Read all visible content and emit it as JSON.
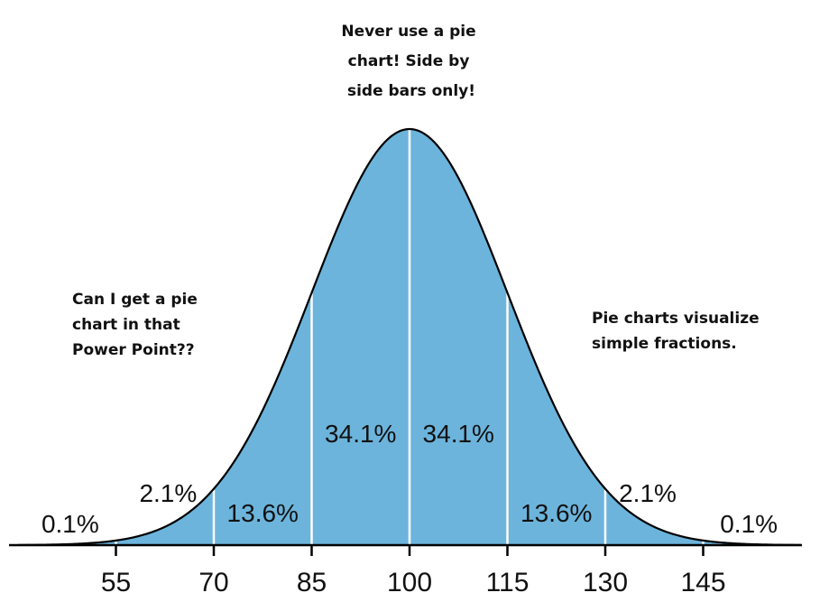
{
  "chart_data": {
    "type": "area",
    "title": "",
    "xlabel": "",
    "ylabel": "",
    "distribution": "normal",
    "mean": 100,
    "sd": 15,
    "xlim": [
      40,
      160
    ],
    "ticks": [
      "55",
      "70",
      "85",
      "100",
      "115",
      "130",
      "145"
    ],
    "tick_values": [
      55,
      70,
      85,
      100,
      115,
      130,
      145
    ],
    "divider_values": [
      55,
      70,
      85,
      100,
      115,
      130,
      145
    ],
    "fill_color": "#6cb4dc",
    "curve_color": "#000000",
    "divider_color": "#ffffff",
    "regions": [
      {
        "label": "0.1%",
        "x": 48
      },
      {
        "label": "2.1%",
        "x": 63
      },
      {
        "label": "13.6%",
        "x": 77.5
      },
      {
        "label": "34.1%",
        "x": 92.5
      },
      {
        "label": "34.1%",
        "x": 107.5
      },
      {
        "label": "13.6%",
        "x": 122.5
      },
      {
        "label": "2.1%",
        "x": 136.5
      },
      {
        "label": "0.1%",
        "x": 152
      }
    ]
  },
  "annotations": {
    "top": {
      "lines": [
        "Never use a pie",
        "chart! Side by",
        "side bars only!"
      ]
    },
    "left": {
      "lines": [
        "Can I get a pie",
        "chart in that",
        "Power Point??"
      ]
    },
    "right": {
      "lines": [
        "Pie charts visualize",
        "simple fractions."
      ]
    }
  }
}
